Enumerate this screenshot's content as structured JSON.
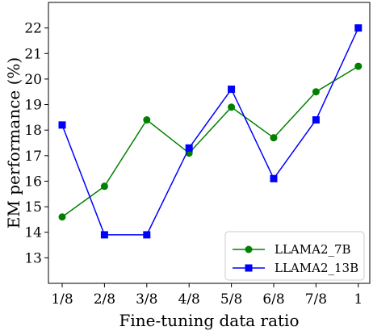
{
  "chart_data": {
    "type": "line",
    "xlabel": "Fine-tuning data ratio",
    "ylabel": "EM performance (%)",
    "categories": [
      "1/8",
      "2/8",
      "3/8",
      "4/8",
      "5/8",
      "6/8",
      "7/8",
      "1"
    ],
    "yticks": [
      13,
      14,
      15,
      16,
      17,
      18,
      19,
      20,
      21,
      22
    ],
    "ylim": [
      12,
      23
    ],
    "grid": false,
    "legend_position": "lower-right",
    "series": [
      {
        "name": "LLAMA2_7B",
        "color": "#008000",
        "marker": "circle",
        "values": [
          14.6,
          15.8,
          18.4,
          17.1,
          18.9,
          17.7,
          19.5,
          20.5
        ]
      },
      {
        "name": "LLAMA2_13B",
        "color": "#0000ff",
        "marker": "square",
        "values": [
          18.2,
          13.9,
          13.9,
          17.3,
          19.6,
          16.1,
          18.4,
          22.0
        ]
      }
    ]
  }
}
